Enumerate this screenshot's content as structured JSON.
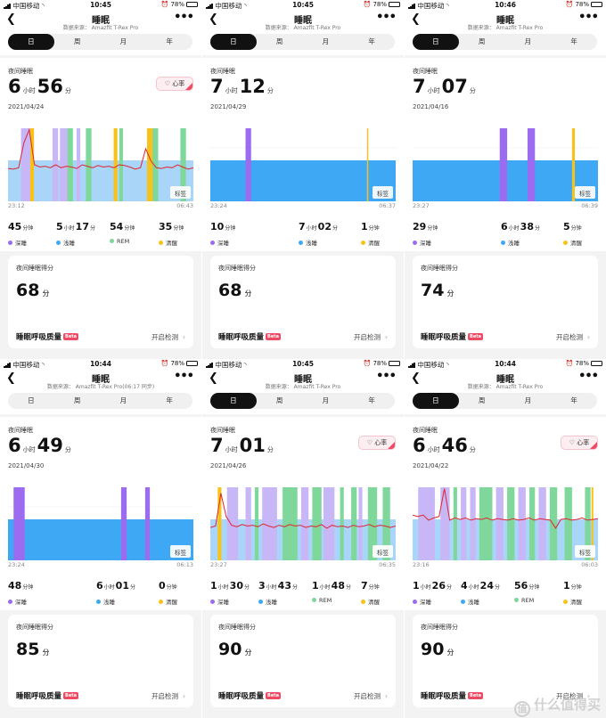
{
  "legend": {
    "deep": "深睡",
    "light": "浅睡",
    "rem": "REM",
    "awake": "清醒"
  },
  "units": {
    "hour": "小时",
    "minute": "分",
    "minutes": "分钟"
  },
  "colors": {
    "deep": "#9b6cf0",
    "deep_band": "#c8b7f6",
    "light": "#3fa8f5",
    "light_band": "#a9d5f8",
    "rem": "#7fd79c",
    "awake": "#f8c21c",
    "heart_line": "#e0242f"
  },
  "watermark": {
    "logo": "值",
    "text": "什么值得买"
  },
  "screens": [
    {
      "status": {
        "carrier": "中国移动",
        "time": "10:45",
        "battery": "78%"
      },
      "nav": {
        "title": "睡眠",
        "source": "数据来源： Amazfit T-Rex Pro"
      },
      "tabs": [
        "日",
        "周",
        "月",
        "年"
      ],
      "active_tab": 0,
      "summary": {
        "label": "夜间睡眠",
        "hours": "6",
        "minutes": "56",
        "date": "2021/04/24",
        "heart_button": "心率"
      },
      "chart_data": {
        "type": "sleep-timeline",
        "start_time": "23:12",
        "end_time": "06:43",
        "tag_label": "标签",
        "full_blocks": [
          {
            "stage": "deep",
            "from": 0.07,
            "to": 0.14
          },
          {
            "stage": "awake",
            "from": 0.12,
            "to": 0.14
          },
          {
            "stage": "deep",
            "from": 0.24,
            "to": 0.27
          },
          {
            "stage": "deep",
            "from": 0.28,
            "to": 0.32
          },
          {
            "stage": "rem",
            "from": 0.32,
            "to": 0.35
          },
          {
            "stage": "deep",
            "from": 0.37,
            "to": 0.39
          },
          {
            "stage": "rem",
            "from": 0.42,
            "to": 0.45
          },
          {
            "stage": "awake",
            "from": 0.57,
            "to": 0.59
          },
          {
            "stage": "rem",
            "from": 0.6,
            "to": 0.62
          },
          {
            "stage": "awake",
            "from": 0.75,
            "to": 0.79
          },
          {
            "stage": "rem",
            "from": 0.78,
            "to": 0.81
          },
          {
            "stage": "rem",
            "from": 0.93,
            "to": 0.96
          }
        ],
        "heart_rate": [
          0.45,
          0.44,
          0.46,
          0.8,
          0.98,
          0.5,
          0.47,
          0.48,
          0.46,
          0.5,
          0.46,
          0.48,
          0.47,
          0.45,
          0.5,
          0.48,
          0.46,
          0.49,
          0.47,
          0.48,
          0.46,
          0.5,
          0.49,
          0.47,
          0.44,
          0.46,
          0.72,
          0.55,
          0.46,
          0.45,
          0.47,
          0.46,
          0.5,
          0.47,
          0.44,
          0.46
        ]
      },
      "stages": [
        {
          "key": "deep",
          "h": "",
          "m": "45",
          "munit": "分钟"
        },
        {
          "key": "light",
          "h": "5",
          "m": "17",
          "munit": "分"
        },
        {
          "key": "rem",
          "h": "",
          "m": "54",
          "munit": "分钟"
        },
        {
          "key": "awake",
          "h": "",
          "m": "35",
          "munit": "分钟"
        }
      ],
      "score": {
        "label": "夜间睡眠得分",
        "value": "68",
        "unit": "分"
      },
      "breath": {
        "title": "睡眠呼吸质量",
        "badge": "Beta",
        "action": "开启检测"
      }
    },
    {
      "status": {
        "carrier": "中国移动",
        "time": "10:45",
        "battery": "78%"
      },
      "nav": {
        "title": "睡眠",
        "source": "数据来源： Amazfit T-Rex Pro"
      },
      "tabs": [
        "日",
        "周",
        "月",
        "年"
      ],
      "active_tab": 0,
      "summary": {
        "label": "夜间睡眠",
        "hours": "7",
        "minutes": "12",
        "date": "2021/04/29",
        "heart_button": ""
      },
      "chart_data": {
        "type": "sleep-timeline",
        "start_time": "23:24",
        "end_time": "06:37",
        "tag_label": "标签",
        "full_blocks": [
          {
            "stage": "deep",
            "from": 0.19,
            "to": 0.22
          },
          {
            "stage": "awake",
            "from": 0.845,
            "to": 0.852
          }
        ],
        "heart_rate": []
      },
      "stages": [
        {
          "key": "deep",
          "h": "",
          "m": "10",
          "munit": "分钟"
        },
        {
          "key": "light",
          "h": "7",
          "m": "02",
          "munit": "分"
        },
        {
          "key": "awake",
          "h": "",
          "m": "1",
          "munit": "分钟"
        }
      ],
      "score": {
        "label": "夜间睡眠得分",
        "value": "68",
        "unit": "分"
      },
      "breath": {
        "title": "睡眠呼吸质量",
        "badge": "Beta",
        "action": "开启检测"
      }
    },
    {
      "status": {
        "carrier": "中国移动",
        "time": "10:46",
        "battery": "78%"
      },
      "nav": {
        "title": "睡眠",
        "source": "数据来源： Amazfit T-Rex Pro"
      },
      "tabs": [
        "日",
        "周",
        "月",
        "年"
      ],
      "active_tab": 0,
      "summary": {
        "label": "夜间睡眠",
        "hours": "7",
        "minutes": "07",
        "date": "2021/04/16",
        "heart_button": ""
      },
      "chart_data": {
        "type": "sleep-timeline",
        "start_time": "23:27",
        "end_time": "06:39",
        "tag_label": "标签",
        "full_blocks": [
          {
            "stage": "deep",
            "from": 0.47,
            "to": 0.51
          },
          {
            "stage": "deep",
            "from": 0.62,
            "to": 0.66
          },
          {
            "stage": "awake",
            "from": 0.86,
            "to": 0.875
          }
        ],
        "heart_rate": []
      },
      "stages": [
        {
          "key": "deep",
          "h": "",
          "m": "29",
          "munit": "分钟"
        },
        {
          "key": "light",
          "h": "6",
          "m": "38",
          "munit": "分"
        },
        {
          "key": "awake",
          "h": "",
          "m": "5",
          "munit": "分钟"
        }
      ],
      "score": {
        "label": "夜间睡眠得分",
        "value": "74",
        "unit": "分"
      },
      "breath": {
        "title": "睡眠呼吸质量",
        "badge": "Beta",
        "action": "开启检测"
      }
    },
    {
      "status": {
        "carrier": "中国移动",
        "time": "10:44",
        "battery": "78%"
      },
      "nav": {
        "title": "睡眠",
        "source": "数据来源： Amazfit T-Rex Pro(06:17 同步)"
      },
      "tabs": [
        "日",
        "周",
        "月",
        "年"
      ],
      "active_tab": -1,
      "summary": {
        "label": "夜间睡眠",
        "hours": "6",
        "minutes": "49",
        "date": "2021/04/30",
        "heart_button": ""
      },
      "chart_data": {
        "type": "sleep-timeline",
        "start_time": "23:24",
        "end_time": "06:13",
        "tag_label": "标签",
        "full_blocks": [
          {
            "stage": "deep",
            "from": 0.03,
            "to": 0.09
          },
          {
            "stage": "deep",
            "from": 0.61,
            "to": 0.64
          },
          {
            "stage": "deep",
            "from": 0.74,
            "to": 0.765
          }
        ],
        "heart_rate": []
      },
      "stages": [
        {
          "key": "deep",
          "h": "",
          "m": "48",
          "munit": "分钟"
        },
        {
          "key": "light",
          "h": "6",
          "m": "01",
          "munit": "分"
        },
        {
          "key": "awake",
          "h": "",
          "m": "0",
          "munit": "分钟"
        }
      ],
      "score": {
        "label": "夜间睡眠得分",
        "value": "85",
        "unit": "分"
      },
      "breath": {
        "title": "睡眠呼吸质量",
        "badge": "Beta",
        "action": "开启检测"
      }
    },
    {
      "status": {
        "carrier": "中国移动",
        "time": "10:45",
        "battery": "78%"
      },
      "nav": {
        "title": "睡眠",
        "source": "数据来源： Amazfit T-Rex Pro"
      },
      "tabs": [
        "日",
        "周",
        "月",
        "年"
      ],
      "active_tab": 0,
      "summary": {
        "label": "夜间睡眠",
        "hours": "7",
        "minutes": "01",
        "date": "2021/04/26",
        "heart_button": "心率"
      },
      "chart_data": {
        "type": "sleep-timeline",
        "start_time": "23:27",
        "end_time": "06:35",
        "tag_label": "标签",
        "full_blocks": [
          {
            "stage": "awake",
            "from": 0.04,
            "to": 0.06
          },
          {
            "stage": "deep",
            "from": 0.09,
            "to": 0.15
          },
          {
            "stage": "deep",
            "from": 0.19,
            "to": 0.22
          },
          {
            "stage": "rem",
            "from": 0.24,
            "to": 0.26
          },
          {
            "stage": "deep",
            "from": 0.28,
            "to": 0.36
          },
          {
            "stage": "rem",
            "from": 0.39,
            "to": 0.47
          },
          {
            "stage": "deep",
            "from": 0.49,
            "to": 0.53
          },
          {
            "stage": "rem",
            "from": 0.55,
            "to": 0.6
          },
          {
            "stage": "deep",
            "from": 0.61,
            "to": 0.67
          },
          {
            "stage": "rem",
            "from": 0.7,
            "to": 0.72
          },
          {
            "stage": "rem",
            "from": 0.76,
            "to": 0.79
          },
          {
            "stage": "deep",
            "from": 0.8,
            "to": 0.82
          },
          {
            "stage": "rem",
            "from": 0.85,
            "to": 0.9
          },
          {
            "stage": "rem",
            "from": 0.93,
            "to": 0.97
          }
        ],
        "heart_rate": [
          0.45,
          0.47,
          0.92,
          0.6,
          0.48,
          0.46,
          0.49,
          0.47,
          0.48,
          0.46,
          0.5,
          0.47,
          0.45,
          0.48,
          0.46,
          0.49,
          0.47,
          0.48,
          0.45,
          0.47,
          0.46,
          0.49,
          0.44,
          0.48,
          0.46,
          0.47,
          0.45,
          0.48,
          0.46,
          0.47,
          0.49,
          0.46,
          0.48,
          0.47,
          0.45,
          0.47
        ]
      },
      "stages": [
        {
          "key": "deep",
          "h": "1",
          "m": "30",
          "munit": "分"
        },
        {
          "key": "light",
          "h": "3",
          "m": "43",
          "munit": "分"
        },
        {
          "key": "rem",
          "h": "1",
          "m": "48",
          "munit": "分"
        },
        {
          "key": "awake",
          "h": "",
          "m": "7",
          "munit": "分钟"
        }
      ],
      "score": {
        "label": "夜间睡眠得分",
        "value": "90",
        "unit": "分"
      },
      "breath": {
        "title": "睡眠呼吸质量",
        "badge": "Beta",
        "action": "开启检测"
      }
    },
    {
      "status": {
        "carrier": "中国移动",
        "time": "10:44",
        "battery": "78%"
      },
      "nav": {
        "title": "睡眠",
        "source": "数据来源： Amazfit T-Rex Pro"
      },
      "tabs": [
        "日",
        "周",
        "月",
        "年"
      ],
      "active_tab": 0,
      "summary": {
        "label": "夜间睡眠",
        "hours": "6",
        "minutes": "46",
        "date": "2021/04/22",
        "heart_button": "心率"
      },
      "chart_data": {
        "type": "sleep-timeline",
        "start_time": "23:16",
        "end_time": "06:03",
        "tag_label": "标签",
        "full_blocks": [
          {
            "stage": "deep",
            "from": 0.03,
            "to": 0.12
          },
          {
            "stage": "deep",
            "from": 0.15,
            "to": 0.2
          },
          {
            "stage": "rem",
            "from": 0.22,
            "to": 0.24
          },
          {
            "stage": "deep",
            "from": 0.26,
            "to": 0.29
          },
          {
            "stage": "deep",
            "from": 0.31,
            "to": 0.34
          },
          {
            "stage": "rem",
            "from": 0.36,
            "to": 0.43
          },
          {
            "stage": "deep",
            "from": 0.45,
            "to": 0.49
          },
          {
            "stage": "rem",
            "from": 0.51,
            "to": 0.55
          },
          {
            "stage": "deep",
            "from": 0.57,
            "to": 0.61
          },
          {
            "stage": "rem",
            "from": 0.63,
            "to": 0.66
          },
          {
            "stage": "deep",
            "from": 0.68,
            "to": 0.72
          },
          {
            "stage": "rem",
            "from": 0.74,
            "to": 0.78
          },
          {
            "stage": "rem",
            "from": 0.82,
            "to": 0.86
          },
          {
            "stage": "rem",
            "from": 0.93,
            "to": 0.96
          },
          {
            "stage": "awake",
            "from": 0.965,
            "to": 0.975
          }
        ],
        "heart_rate": [
          0.62,
          0.6,
          0.62,
          0.55,
          0.58,
          0.6,
          0.98,
          0.55,
          0.58,
          0.56,
          0.58,
          0.55,
          0.57,
          0.56,
          0.58,
          0.55,
          0.57,
          0.56,
          0.55,
          0.57,
          0.55,
          0.56,
          0.58,
          0.55,
          0.57,
          0.56,
          0.55,
          0.44,
          0.56,
          0.57,
          0.55,
          0.56,
          0.58,
          0.55,
          0.56,
          0.57
        ]
      },
      "stages": [
        {
          "key": "deep",
          "h": "1",
          "m": "26",
          "munit": "分"
        },
        {
          "key": "light",
          "h": "4",
          "m": "24",
          "munit": "分"
        },
        {
          "key": "rem",
          "h": "",
          "m": "56",
          "munit": "分钟"
        },
        {
          "key": "awake",
          "h": "",
          "m": "1",
          "munit": "分钟"
        }
      ],
      "score": {
        "label": "夜间睡眠得分",
        "value": "90",
        "unit": "分"
      },
      "breath": {
        "title": "睡眠呼吸质量",
        "badge": "Beta",
        "action": "开启检测"
      }
    }
  ]
}
